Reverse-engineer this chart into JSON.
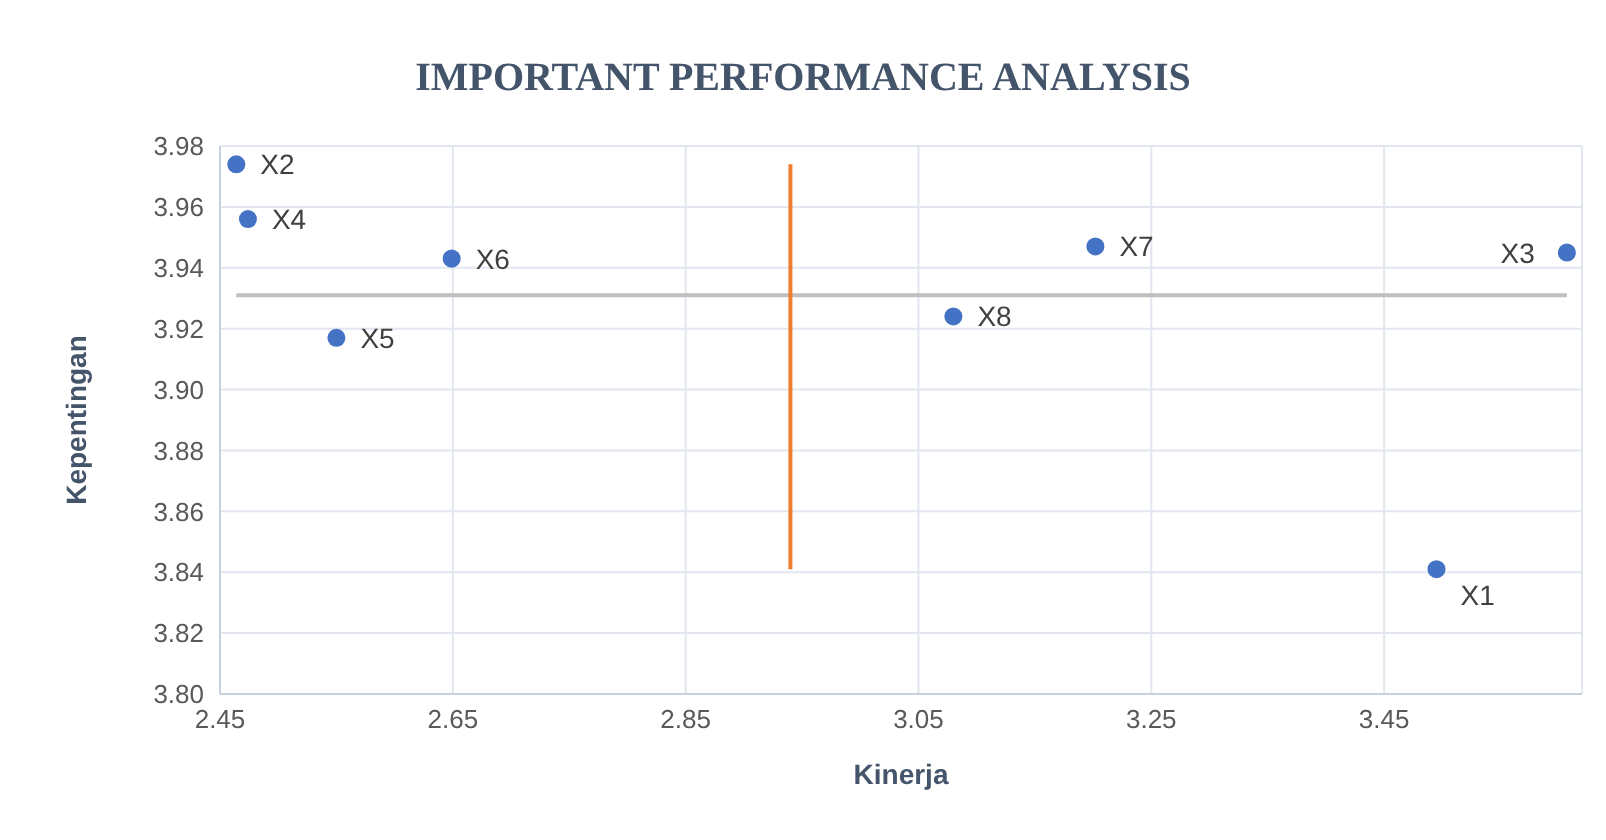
{
  "chart_data": {
    "type": "scatter",
    "title": "IMPORTANT PERFORMANCE ANALYSIS",
    "xlabel": "Kinerja",
    "ylabel": "Kepentingan",
    "x": [
      3.495,
      2.464,
      3.607,
      2.474,
      2.55,
      2.649,
      3.202,
      3.08
    ],
    "values": [
      3.841,
      3.974,
      3.945,
      3.956,
      3.917,
      3.943,
      3.947,
      3.924
    ],
    "color": "#4472c4",
    "marker": "circle",
    "series": [
      {
        "type": "line",
        "color": "#bfbfbf",
        "marker": "none",
        "x": [
          2.464,
          3.607
        ],
        "values": [
          3.931,
          3.931
        ]
      },
      {
        "type": "line",
        "color": "#ed7d31",
        "marker": "none",
        "x": [
          2.94,
          2.94
        ],
        "values": [
          3.841,
          3.974
        ]
      }
    ],
    "annotations": [
      {
        "text": "X1",
        "x": 3.495,
        "y": 3.841
      },
      {
        "text": "X2",
        "x": 2.464,
        "y": 3.974
      },
      {
        "text": "X3",
        "x": 3.607,
        "y": 3.945
      },
      {
        "text": "X4",
        "x": 2.474,
        "y": 3.956
      },
      {
        "text": "X5",
        "x": 2.55,
        "y": 3.917
      },
      {
        "text": "X6",
        "x": 2.649,
        "y": 3.943
      },
      {
        "text": "X7",
        "x": 3.202,
        "y": 3.947
      },
      {
        "text": "X8",
        "x": 3.08,
        "y": 3.924
      }
    ],
    "xlim": [
      2.45,
      3.62
    ],
    "xticks": [
      2.45,
      2.65,
      2.85,
      3.05,
      3.25,
      3.45
    ],
    "ylim": [
      3.8,
      3.98
    ],
    "yticks": [
      {
        "value": 3.8,
        "label": "3.80"
      },
      3.82,
      3.84,
      3.86,
      3.88,
      {
        "value": 3.9,
        "label": "3.90"
      },
      3.92,
      3.94,
      3.96,
      3.98
    ],
    "grid": true
  }
}
